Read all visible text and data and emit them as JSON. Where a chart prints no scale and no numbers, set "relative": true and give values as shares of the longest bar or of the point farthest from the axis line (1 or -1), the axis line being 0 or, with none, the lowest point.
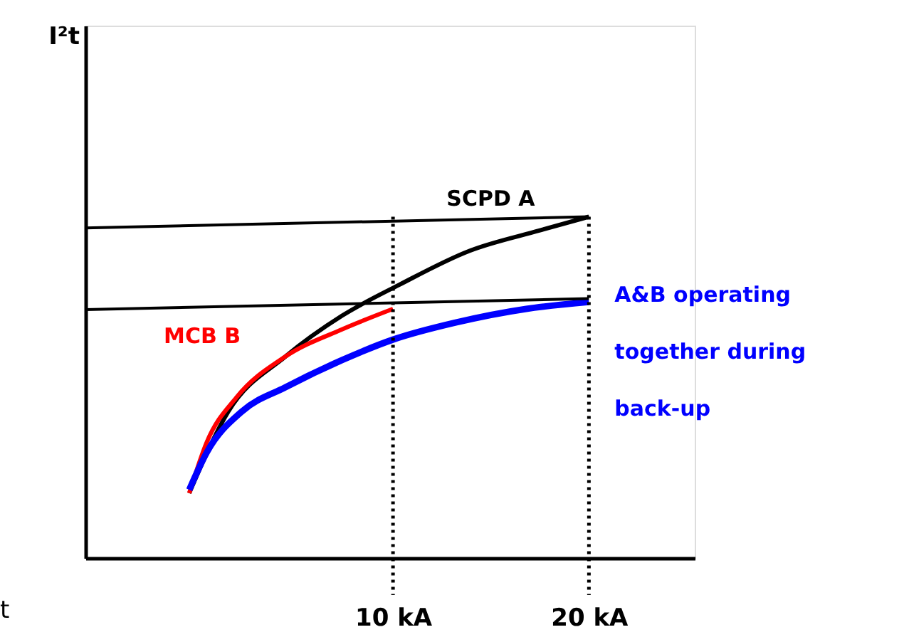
{
  "chart_data": {
    "type": "line",
    "relative": true,
    "xlim": [
      -5.7,
      25.4
    ],
    "xticks": [
      {
        "value": 10,
        "label": "10 kA"
      },
      {
        "value": 20,
        "label": "20 kA"
      }
    ],
    "grid": false,
    "marker": "none",
    "annotations": [
      "I²t",
      "t"
    ],
    "ref_lines": [
      {
        "axis": "x",
        "value": 10,
        "color": "#000000",
        "line_style": "dotted"
      },
      {
        "axis": "x",
        "value": 20,
        "color": "#000000",
        "line_style": "dotted"
      }
    ],
    "series": [
      {
        "name": "SCPD A",
        "color": "#000000",
        "x": [
          -0.4,
          1.6,
          4.5,
          7.4,
          10.3,
          13.9,
          17.5,
          20
        ],
        "values": [
          0.19,
          0.43,
          0.59,
          0.71,
          0.8,
          0.9,
          0.96,
          1
        ]
      },
      {
        "name": "MCB B",
        "color": "#ff0000",
        "x": [
          -0.4,
          0.5,
          2.0,
          4.5,
          7.4,
          10
        ],
        "values": [
          0.19,
          0.34,
          0.47,
          0.59,
          0.67,
          0.73
        ]
      },
      {
        "name": "A&B operating together during back-up",
        "color": "#0000ff",
        "x": [
          -0.4,
          0.5,
          2.3,
          4.5,
          7.4,
          10,
          13.2,
          16.8,
          20
        ],
        "values": [
          0.2,
          0.31,
          0.43,
          0.5,
          0.58,
          0.64,
          0.69,
          0.73,
          0.75
        ]
      },
      {
        "color": "#000000",
        "x": [
          20,
          -5.7
        ],
        "values": [
          1,
          0.967
        ]
      },
      {
        "color": "#000000",
        "x": [
          20,
          -5.7
        ],
        "values": [
          0.76,
          0.728
        ]
      }
    ]
  }
}
